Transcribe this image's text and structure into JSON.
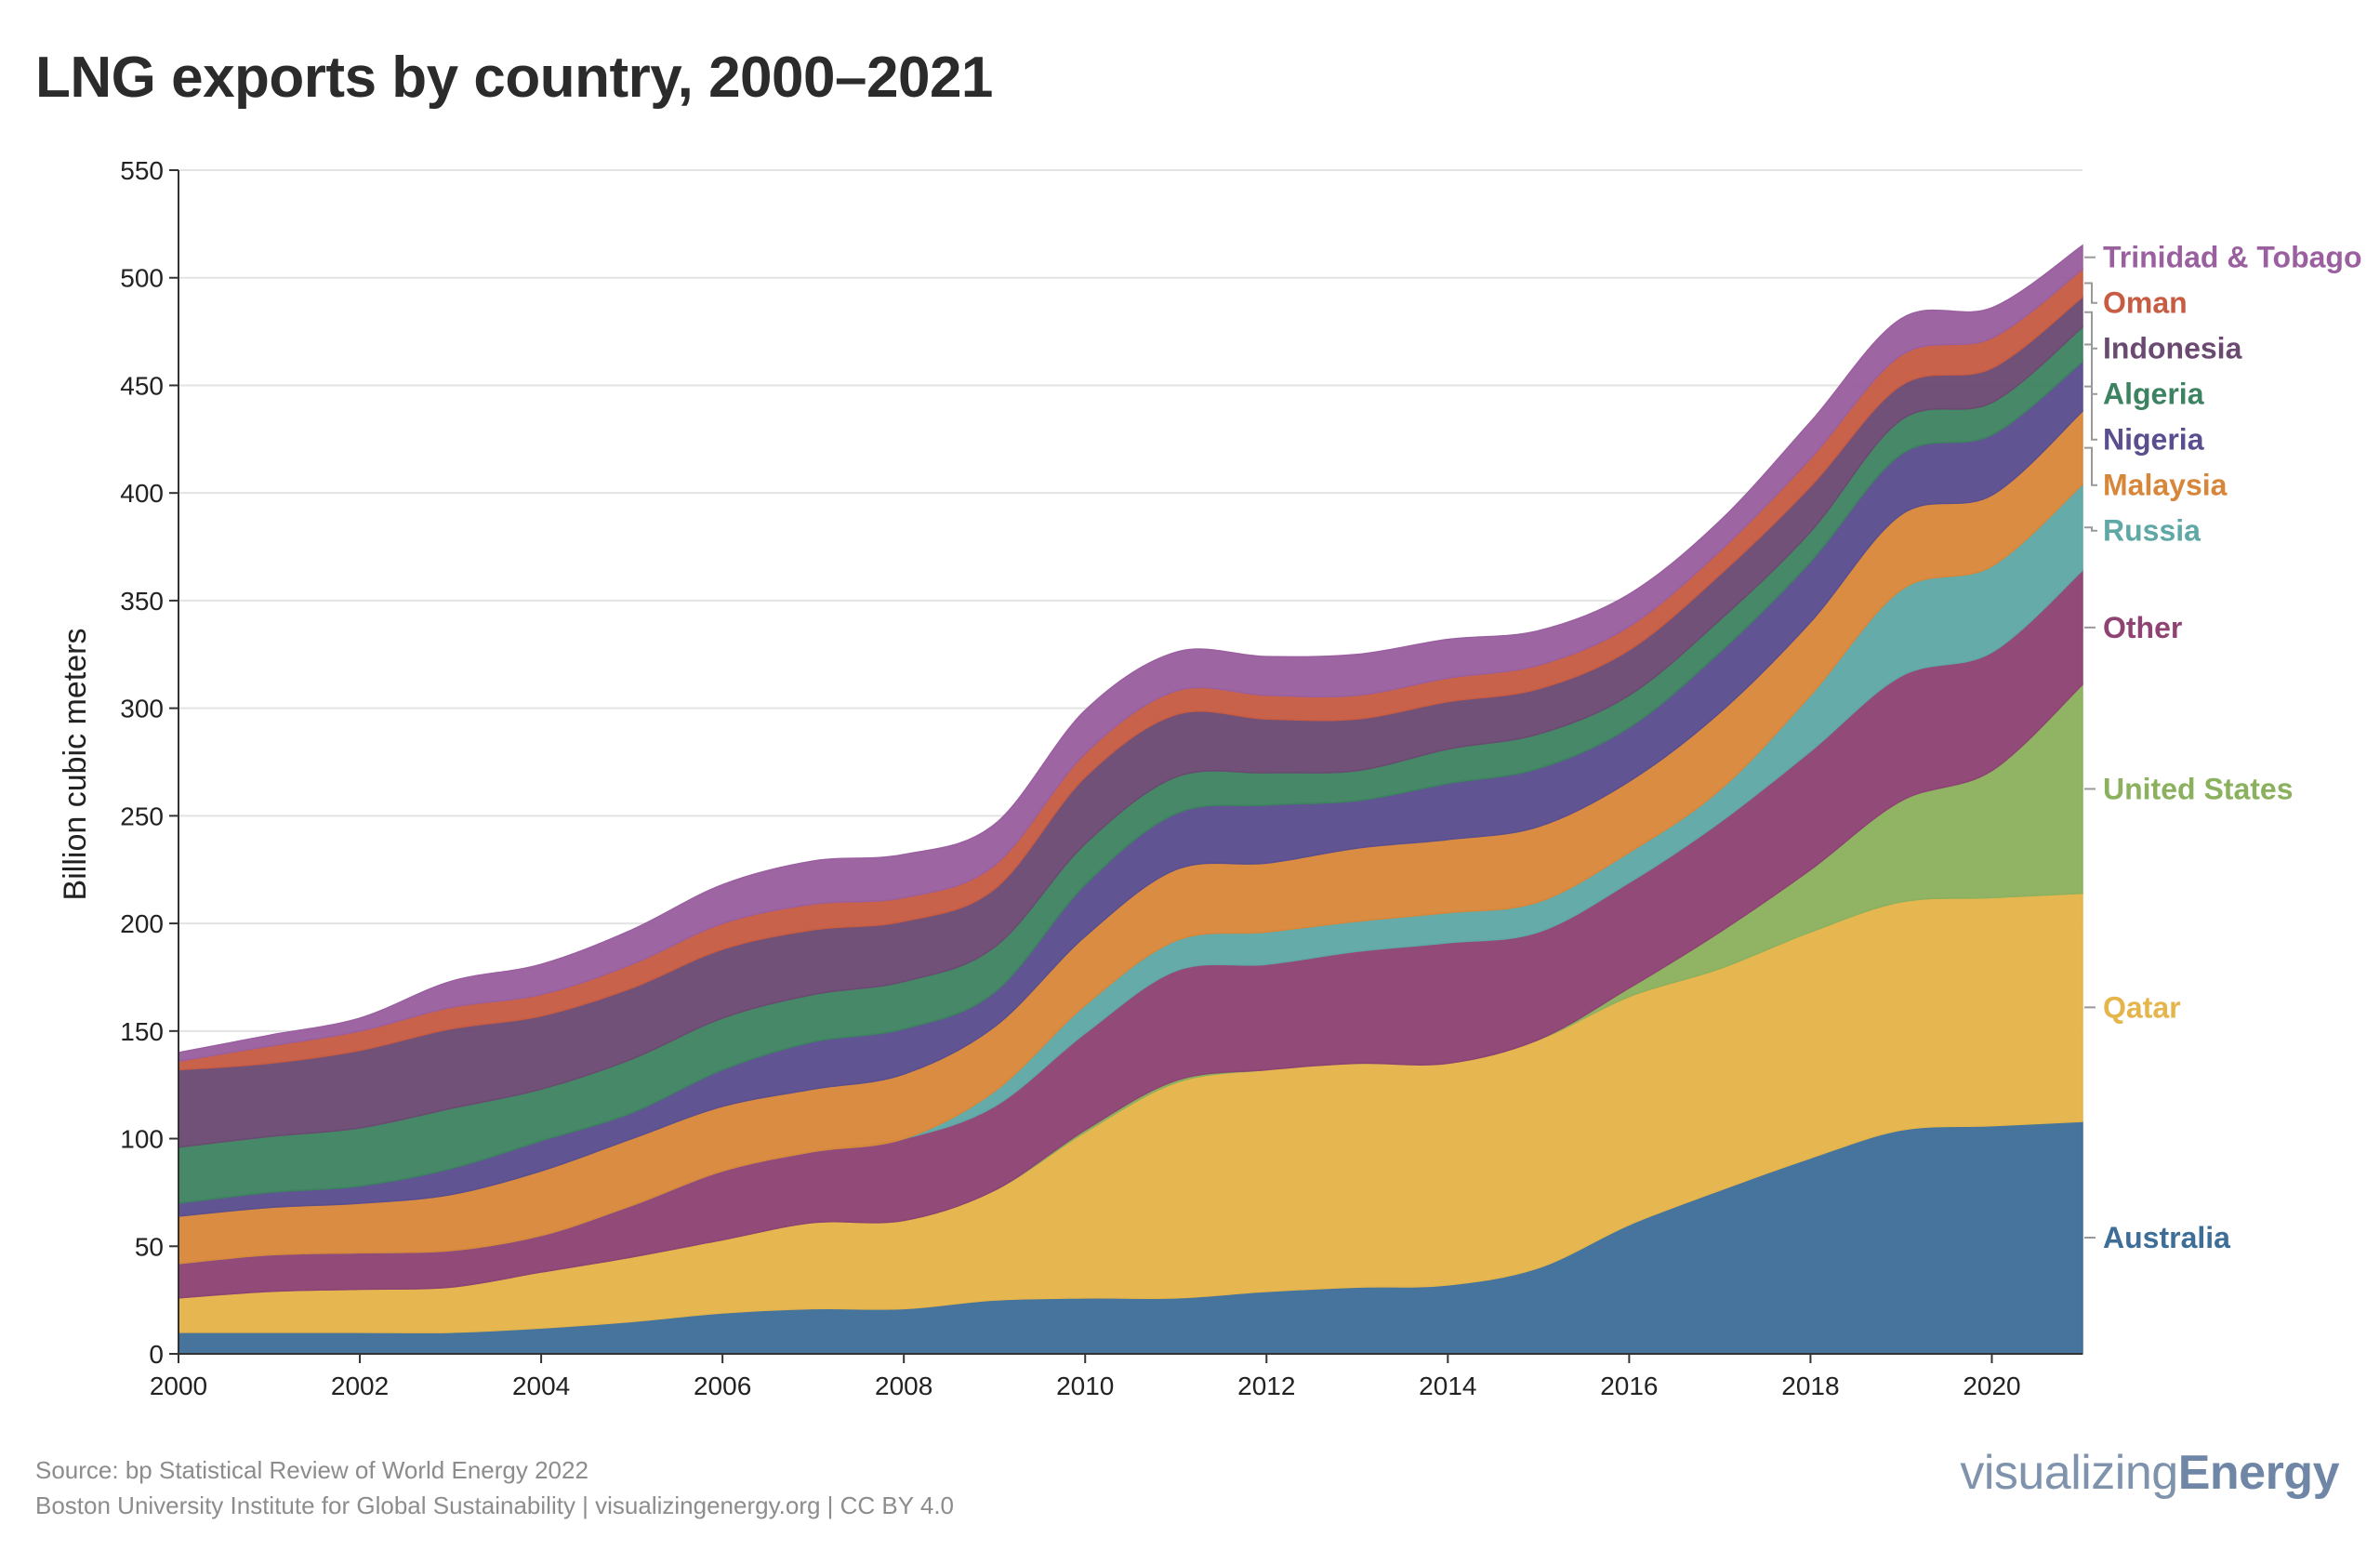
{
  "title": "LNG exports by country, 2000–2021",
  "footer": {
    "source": "Source: bp Statistical Review of World Energy 2022",
    "credit": "Boston University Institute for Global Sustainability | visualizingenergy.org | CC BY 4.0",
    "brand_light": "visualizing",
    "brand_bold": "Energy"
  },
  "chart_data": {
    "type": "area",
    "stacked": true,
    "ylabel": "Billion cubic meters",
    "xlabel": "",
    "ylim": [
      0,
      550
    ],
    "xlim": [
      2000,
      2021
    ],
    "yticks": [
      0,
      50,
      100,
      150,
      200,
      250,
      300,
      350,
      400,
      450,
      500,
      550
    ],
    "xticks": [
      2000,
      2002,
      2004,
      2006,
      2008,
      2010,
      2012,
      2014,
      2016,
      2018,
      2020
    ],
    "grid": "horizontal",
    "legend": "right (labels at series ends)",
    "x": [
      2000,
      2001,
      2002,
      2003,
      2004,
      2005,
      2006,
      2007,
      2008,
      2009,
      2010,
      2011,
      2012,
      2013,
      2014,
      2015,
      2016,
      2017,
      2018,
      2019,
      2020,
      2021
    ],
    "series": [
      {
        "name": "Australia",
        "color": "#3e6e98",
        "values": [
          10,
          10,
          10,
          10,
          12,
          15,
          19,
          21,
          21,
          25,
          26,
          26,
          29,
          31,
          32,
          40,
          60,
          76,
          91,
          104,
          106,
          108
        ]
      },
      {
        "name": "Qatar",
        "color": "#e5b44a",
        "values": [
          16,
          19,
          20,
          21,
          26,
          30,
          34,
          40,
          41,
          51,
          77,
          100,
          103,
          104,
          103,
          106,
          106,
          103,
          105,
          106,
          106,
          106
        ]
      },
      {
        "name": "United States",
        "color": "#8bb05e",
        "values": [
          0,
          0,
          0,
          0,
          0,
          0,
          0,
          0,
          0,
          0,
          1,
          1,
          0,
          0,
          0,
          0,
          4,
          17,
          29,
          47,
          59,
          97
        ]
      },
      {
        "name": "Other",
        "color": "#8e4373",
        "values": [
          16,
          17,
          17,
          17,
          17,
          24,
          32,
          33,
          38,
          39,
          45,
          51,
          49,
          52,
          56,
          50,
          49,
          51,
          55,
          58,
          55,
          53
        ]
      },
      {
        "name": "Russia",
        "color": "#5fa8a6",
        "values": [
          0,
          0,
          0,
          0,
          0,
          0,
          0,
          0,
          0,
          7,
          13,
          14,
          15,
          14,
          14,
          14,
          14,
          15,
          26,
          40,
          40,
          40
        ]
      },
      {
        "name": "Malaysia",
        "color": "#d8873a",
        "values": [
          22,
          22,
          23,
          26,
          30,
          31,
          30,
          29,
          30,
          30,
          32,
          33,
          32,
          34,
          34,
          35,
          33,
          36,
          34,
          35,
          33,
          34
        ]
      },
      {
        "name": "Nigeria",
        "color": "#5a4e8e",
        "values": [
          6,
          7,
          8,
          12,
          14,
          12,
          17,
          22,
          21,
          16,
          24,
          26,
          27,
          22,
          26,
          27,
          25,
          28,
          28,
          28,
          28,
          23
        ]
      },
      {
        "name": "Algeria",
        "color": "#3e8361",
        "values": [
          26,
          26,
          27,
          28,
          24,
          25,
          24,
          22,
          22,
          21,
          19,
          17,
          15,
          14,
          16,
          16,
          15,
          15,
          14,
          16,
          15,
          16
        ]
      },
      {
        "name": "Indonesia",
        "color": "#6b4a72",
        "values": [
          36,
          34,
          36,
          37,
          34,
          33,
          32,
          30,
          28,
          27,
          31,
          29,
          25,
          24,
          22,
          21,
          21,
          21,
          21,
          16,
          16,
          14
        ]
      },
      {
        "name": "Oman",
        "color": "#c75c43",
        "values": [
          4,
          8,
          9,
          10,
          10,
          11,
          12,
          12,
          11,
          11,
          11,
          11,
          11,
          11,
          11,
          11,
          11,
          11,
          13,
          14,
          14,
          13
        ]
      },
      {
        "name": "Trinidad & Tobago",
        "color": "#9a5f9f",
        "values": [
          4,
          5,
          6,
          12,
          14,
          16,
          18,
          20,
          20,
          19,
          20,
          18,
          18,
          19,
          18,
          16,
          15,
          14,
          17,
          17,
          14,
          11
        ]
      }
    ]
  }
}
